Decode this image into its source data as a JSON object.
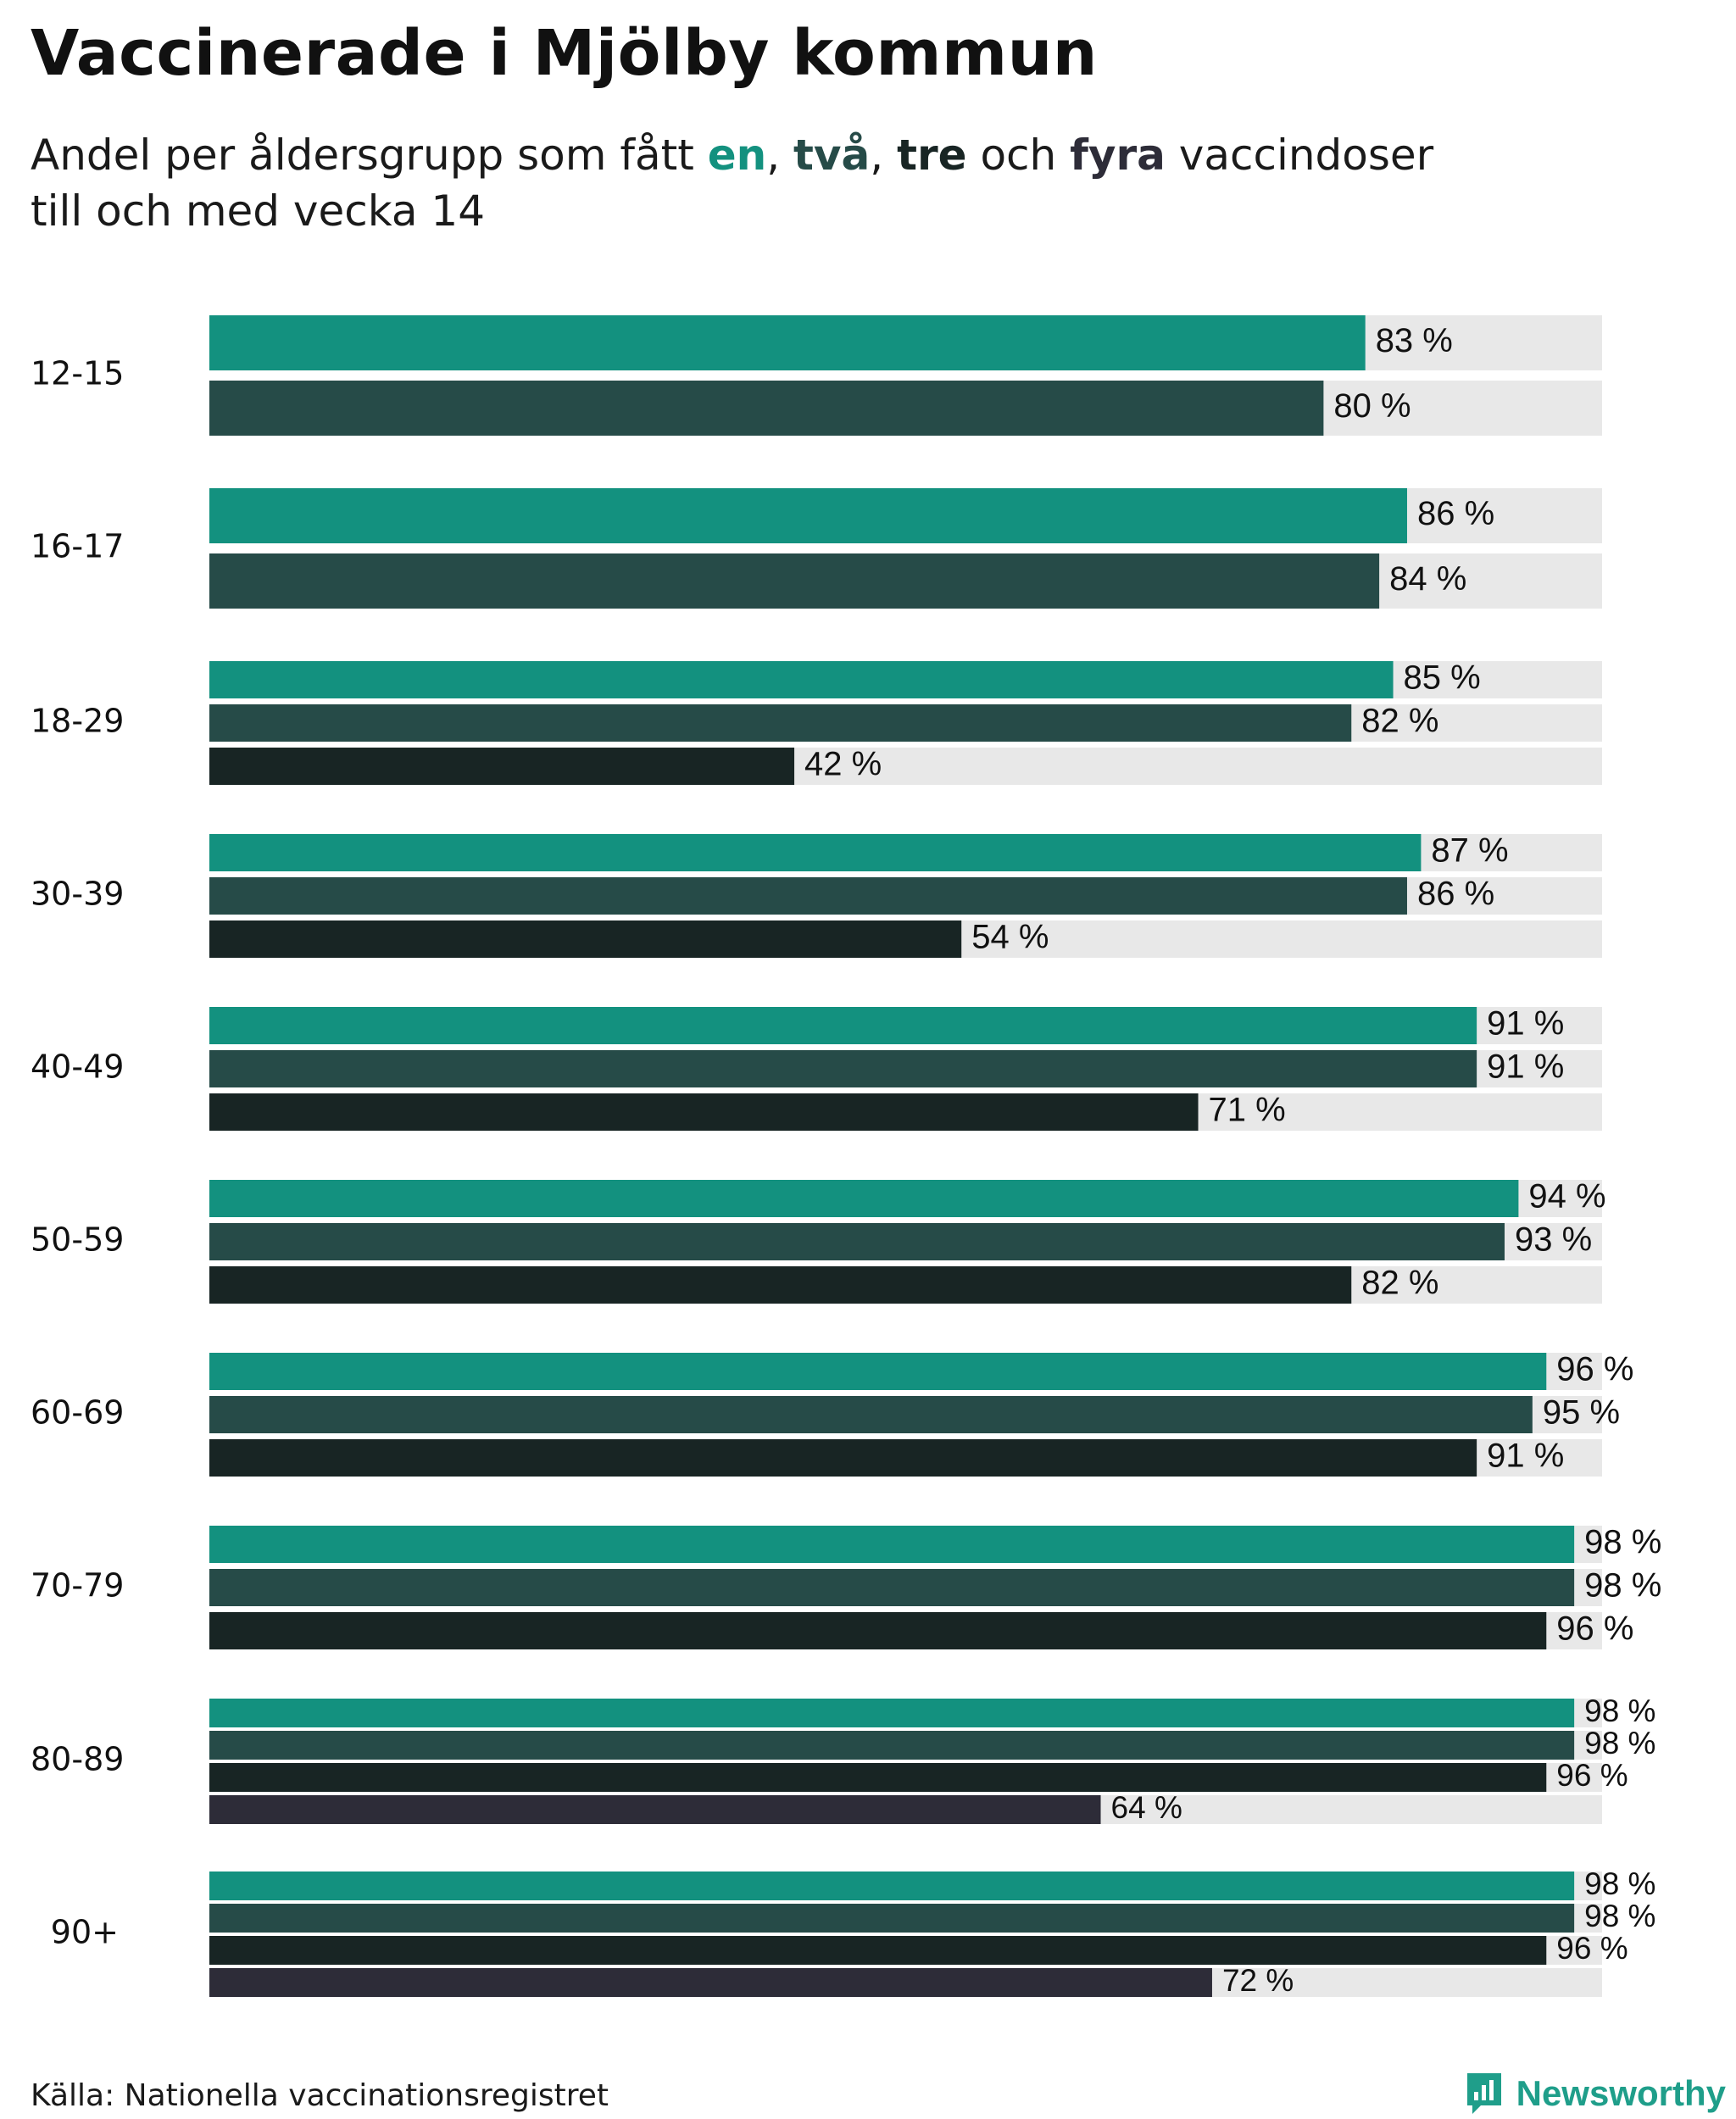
{
  "title": "Vaccinerade i Mjölby kommun",
  "subtitle": {
    "prefix": "Andel per åldersgrupp som fått ",
    "dose1": "en",
    "sep1": ", ",
    "dose2": "två",
    "sep2": ", ",
    "dose3": "tre",
    "sep3": " och ",
    "dose4": "fyra",
    "suffix": " vaccindoser",
    "line2": "till och med vecka 14"
  },
  "colors": {
    "dose1": "#13917f",
    "dose2": "#264b48",
    "dose3": "#182524",
    "dose4": "#2d2c38",
    "track": "#e8e8e8",
    "brand": "#1f9e8a"
  },
  "chart_data": {
    "type": "bar",
    "orientation": "horizontal",
    "title": "Vaccinerade i Mjölby kommun",
    "value_suffix": " %",
    "xlim": [
      0,
      100
    ],
    "categories": [
      "12-15",
      "16-17",
      "18-29",
      "30-39",
      "40-49",
      "50-59",
      "60-69",
      "70-79",
      "80-89",
      "90+"
    ],
    "series": [
      {
        "name": "en",
        "values": [
          83,
          86,
          85,
          87,
          91,
          94,
          96,
          98,
          98,
          98
        ]
      },
      {
        "name": "två",
        "values": [
          80,
          84,
          82,
          86,
          91,
          93,
          95,
          98,
          98,
          98
        ]
      },
      {
        "name": "tre",
        "values": [
          null,
          null,
          42,
          54,
          71,
          82,
          91,
          96,
          96,
          96
        ]
      },
      {
        "name": "fyra",
        "values": [
          null,
          null,
          null,
          null,
          null,
          null,
          null,
          null,
          64,
          72
        ]
      }
    ]
  },
  "footer": {
    "source": "Källa: Nationella vaccinationsregistret",
    "brand": "Newsworthy",
    "brand_icon": "bar-chart-logo-icon"
  }
}
